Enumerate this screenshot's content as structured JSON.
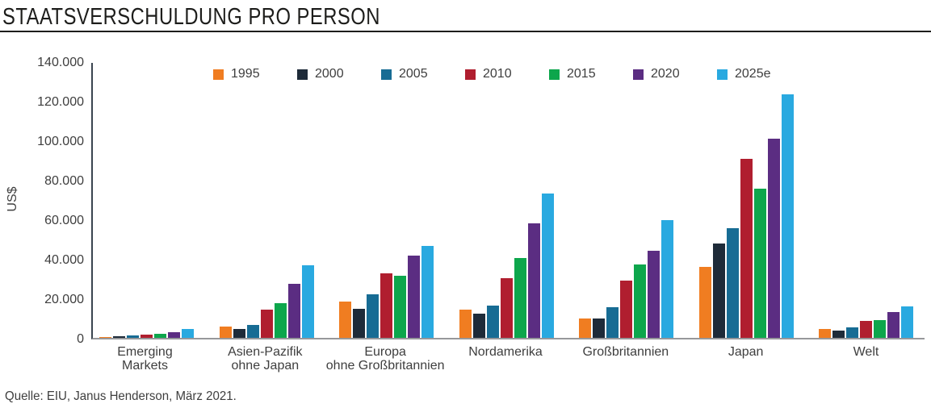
{
  "header": {
    "title": "STAATSVERSCHULDUNG PRO PERSON"
  },
  "footer": {
    "source": "Quelle: EIU, Janus Henderson, März 2021."
  },
  "colors": {
    "title": "#1d1d1b",
    "text": "#3e3e3e",
    "axis_line": "#3a4550",
    "baseline": "#97989b",
    "background": "#ffffff"
  },
  "chart_data": {
    "type": "bar",
    "title": "STAATSVERSCHULDUNG PRO PERSON",
    "xlabel": "",
    "ylabel": "US$",
    "ylim": [
      0,
      140000
    ],
    "ytick_interval": 20000,
    "ytick_labels": [
      "0",
      "20.000",
      "40.000",
      "60.000",
      "80.000",
      "100.000",
      "120.000",
      "140.000"
    ],
    "grid": false,
    "legend_position": "top-inside",
    "categories": [
      "Emerging Markets",
      "Asien-Pazifik ohne Japan",
      "Europa ohne Großbritannien",
      "Nordamerika",
      "Großbritannien",
      "Japan",
      "Welt"
    ],
    "category_label_lines": [
      [
        "Emerging",
        "Markets"
      ],
      [
        "Asien-Pazifik",
        "ohne Japan"
      ],
      [
        "Europa",
        "ohne Großbritannien"
      ],
      [
        "Nordamerika"
      ],
      [
        "Großbritannien"
      ],
      [
        "Japan"
      ],
      [
        "Welt"
      ]
    ],
    "series": [
      {
        "name": "1995",
        "color": "#F07D21",
        "values": [
          500,
          5600,
          18300,
          14200,
          9700,
          36000,
          4400
        ]
      },
      {
        "name": "2000",
        "color": "#1E2B39",
        "values": [
          700,
          4700,
          14600,
          12200,
          10000,
          48000,
          3600
        ]
      },
      {
        "name": "2005",
        "color": "#176C94",
        "values": [
          1100,
          6700,
          22000,
          16500,
          15500,
          56000,
          5400
        ]
      },
      {
        "name": "2010",
        "color": "#B01E2F",
        "values": [
          1800,
          14500,
          33000,
          30500,
          29000,
          91000,
          8800
        ]
      },
      {
        "name": "2015",
        "color": "#0DA64C",
        "values": [
          2000,
          17600,
          31500,
          40500,
          37500,
          76000,
          9200
        ]
      },
      {
        "name": "2020",
        "color": "#5B2D82",
        "values": [
          3000,
          27500,
          42000,
          58500,
          44500,
          101500,
          13000
        ]
      },
      {
        "name": "2025e",
        "color": "#29A9E0",
        "values": [
          4400,
          37000,
          47000,
          73500,
          60000,
          124000,
          16200
        ]
      }
    ]
  }
}
